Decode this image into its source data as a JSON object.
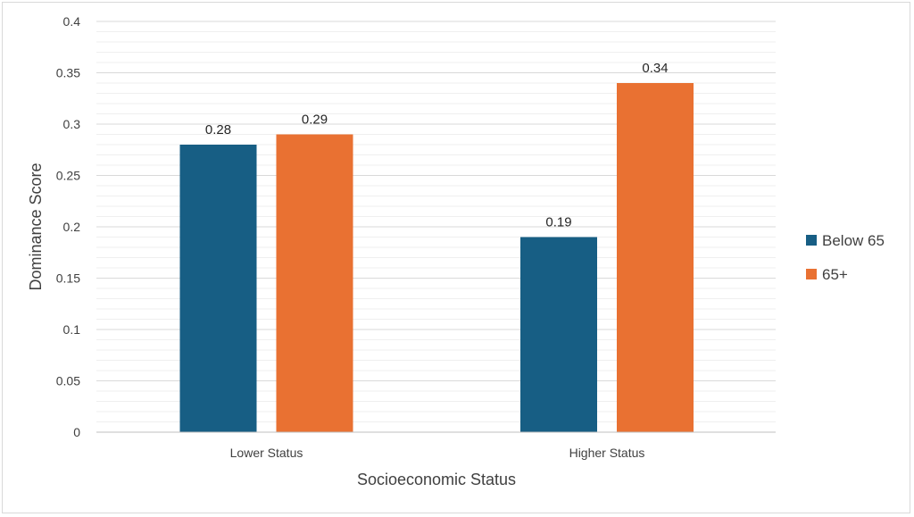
{
  "chart_data": {
    "type": "bar",
    "title": "",
    "xlabel": "Socioeconomic Status",
    "ylabel": "Dominance Score",
    "categories": [
      "Lower Status",
      "Higher Status"
    ],
    "series": [
      {
        "name": "Below 65",
        "values": [
          0.28,
          0.19
        ],
        "color": "#175E84"
      },
      {
        "name": "65+",
        "values": [
          0.29,
          0.34
        ],
        "color": "#E97132"
      }
    ],
    "ylim": [
      0,
      0.4
    ],
    "yticks": [
      0,
      0.05,
      0.1,
      0.15,
      0.2,
      0.25,
      0.3,
      0.35,
      0.4
    ],
    "ytick_labels": [
      "0",
      "0.05",
      "0.1",
      "0.15",
      "0.2",
      "0.25",
      "0.3",
      "0.35",
      "0.4"
    ],
    "data_labels": [
      [
        "0.28",
        "0.19"
      ],
      [
        "0.29",
        "0.34"
      ]
    ],
    "grid": true,
    "legend": "right"
  }
}
